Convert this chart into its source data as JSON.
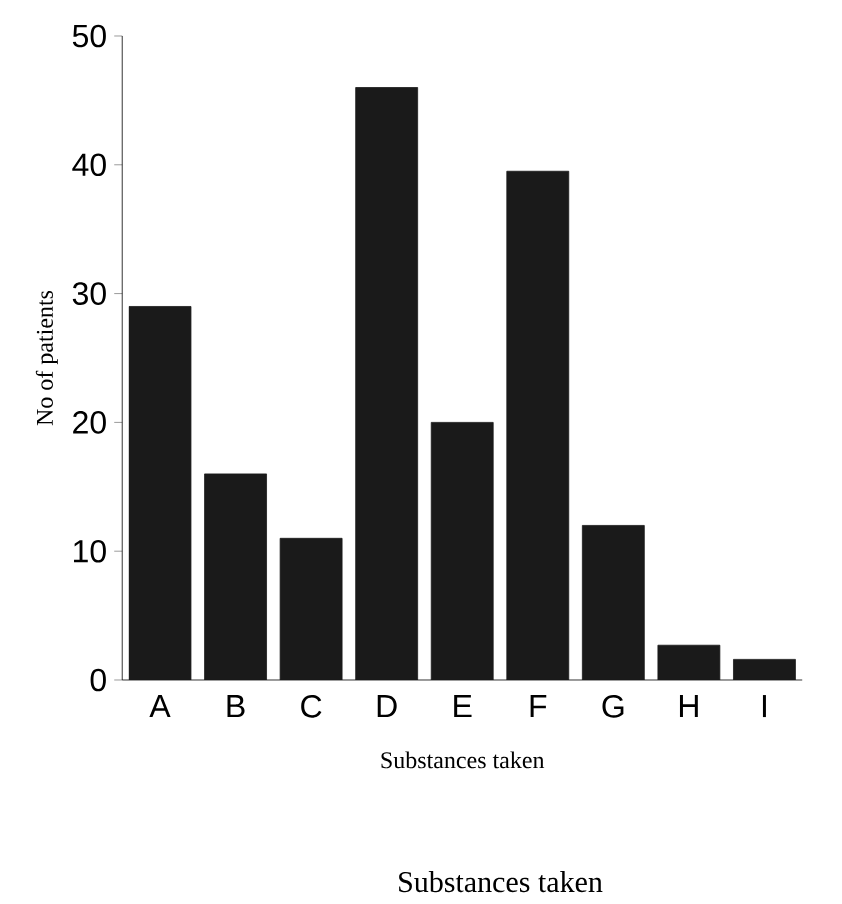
{
  "chart_data": {
    "type": "bar",
    "xlabel": "Substances taken",
    "ylabel": "No of patients",
    "annotations": [
      "Substances taken"
    ],
    "categories": [
      "A",
      "B",
      "C",
      "D",
      "E",
      "F",
      "G",
      "H",
      "I"
    ],
    "values": [
      29,
      16,
      11,
      46,
      20,
      39.5,
      12,
      2.7,
      1.6
    ],
    "color": "#1a1a1a",
    "ylim": [
      0,
      50
    ],
    "yticks": [
      0,
      10,
      20,
      30,
      40,
      50
    ],
    "grid": false
  }
}
